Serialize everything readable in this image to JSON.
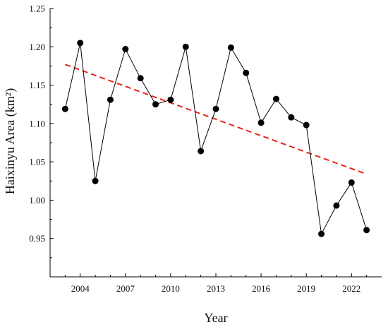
{
  "chart_data": {
    "type": "scatter",
    "xlabel": "Year",
    "ylabel": "Haixinyu Area (km²)",
    "xlim": [
      2002,
      2024
    ],
    "ylim": [
      0.9,
      1.25
    ],
    "xticks": [
      2004,
      2007,
      2010,
      2013,
      2016,
      2019,
      2022
    ],
    "xtick_labels": [
      "2004",
      "2007",
      "2010",
      "2013",
      "2016",
      "2019",
      "2022"
    ],
    "yticks": [
      0.95,
      1.0,
      1.05,
      1.1,
      1.15,
      1.2,
      1.25
    ],
    "ytick_labels": [
      "0.95",
      "1.00",
      "1.05",
      "1.10",
      "1.15",
      "1.20",
      "1.25"
    ],
    "grid": false,
    "series": [
      {
        "style": "line+markers",
        "color": "#000000",
        "x": [
          2003,
          2004,
          2005,
          2006,
          2007,
          2008,
          2009,
          2010,
          2011,
          2012,
          2013,
          2014,
          2015,
          2016,
          2017,
          2018,
          2019,
          2020,
          2021,
          2022,
          2023
        ],
        "y": [
          1.119,
          1.205,
          1.025,
          1.131,
          1.197,
          1.159,
          1.125,
          1.131,
          1.2,
          1.064,
          1.119,
          1.199,
          1.166,
          1.101,
          1.132,
          1.108,
          1.098,
          0.956,
          0.993,
          1.023,
          0.961
        ]
      },
      {
        "style": "dashed-trend",
        "color": "#e8261d",
        "x": [
          2003,
          2023
        ],
        "y": [
          1.177,
          1.034
        ]
      }
    ]
  }
}
